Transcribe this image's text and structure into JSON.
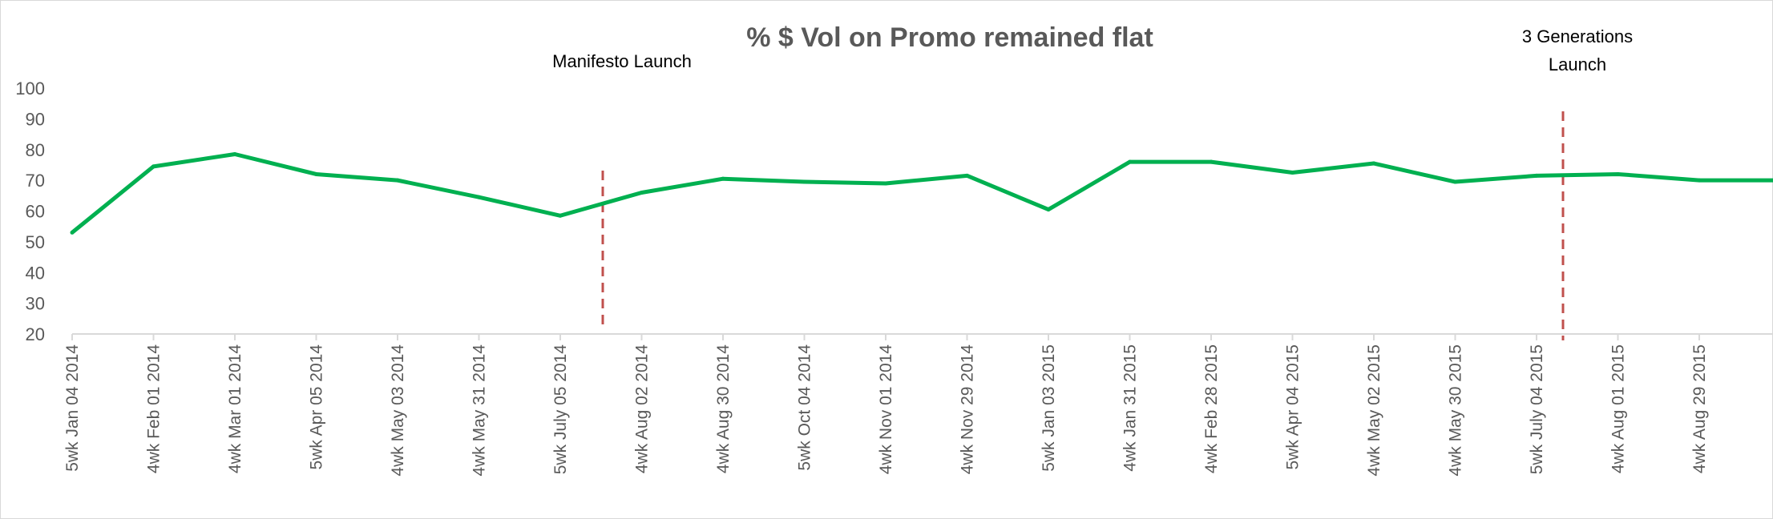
{
  "chart_data": {
    "type": "line",
    "title": "% $ Vol on Promo remained flat",
    "xlabel": "",
    "ylabel": "",
    "ylim": [
      20,
      100
    ],
    "yticks": [
      20,
      30,
      40,
      50,
      60,
      70,
      80,
      90,
      100
    ],
    "grid": false,
    "legend": "none",
    "categories": [
      "5wk Jan 04 2014",
      "4wk Feb 01 2014",
      "4wk Mar 01 2014",
      "5wk Apr 05 2014",
      "4wk May 03 2014",
      "4wk May 31 2014",
      "5wk July 05 2014",
      "4wk Aug 02 2014",
      "4wk Aug 30 2014",
      "5wk Oct 04 2014",
      "4wk Nov 01 2014",
      "4wk Nov 29 2014",
      "5wk Jan 03 2015",
      "4wk Jan 31 2015",
      "4wk Feb 28 2015",
      "5wk Apr 04 2015",
      "4wk May 02 2015",
      "4wk May 30 2015",
      "5wk July 04 2015",
      "4wk Aug 01 2015",
      "4wk Aug 29 2015",
      ""
    ],
    "series": [
      {
        "color": "#00b050",
        "values": [
          53,
          74.5,
          78.5,
          72,
          70,
          64.5,
          58.5,
          66,
          70.5,
          69.5,
          69,
          71.5,
          60.5,
          76,
          76,
          72.5,
          75.5,
          69.5,
          71.5,
          72,
          70,
          70
        ]
      }
    ],
    "annotations": [
      {
        "text": "Manifesto Launch",
        "lines": [
          "Manifesto Launch"
        ],
        "position_between": [
          "5wk July 05 2014",
          "4wk Aug 02 2014"
        ],
        "color": "#c0504d",
        "style": "dashed"
      },
      {
        "text": "3 Generations Launch",
        "lines": [
          "3 Generations",
          "Launch"
        ],
        "position_between": [
          "5wk July 04 2015",
          "4wk Aug 01 2015"
        ],
        "color": "#c0504d",
        "style": "dashed"
      }
    ]
  }
}
